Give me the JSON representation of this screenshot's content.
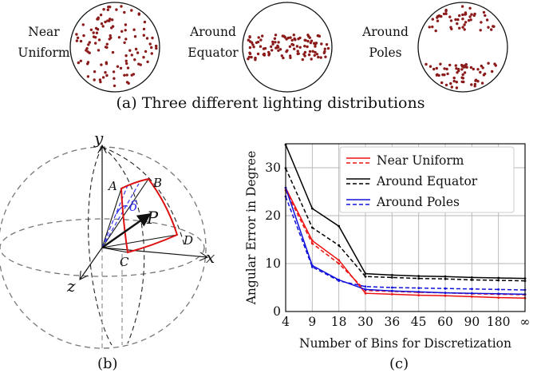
{
  "top_panel": {
    "caption": "(a) Three different lighting distributions",
    "groups": [
      {
        "line1": "Near",
        "line2": "Uniform"
      },
      {
        "line1": "Around",
        "line2": "Equator"
      },
      {
        "line1": "Around",
        "line2": "Poles"
      }
    ]
  },
  "diagram": {
    "caption": "(b)",
    "axis_y": "y",
    "axis_x": "x",
    "axis_z": "z",
    "point_A": "A",
    "point_B": "B",
    "point_C": "C",
    "point_D": "D",
    "vector_P": "P",
    "angle_delta": "δ"
  },
  "colors": {
    "point_dot": "#8b1a1a",
    "near_uniform": "#ee1111",
    "around_equator": "#000000",
    "around_poles": "#1111dd",
    "diagram_red": "#dd1111",
    "diagram_blue": "#3333ee"
  },
  "chart_caption": "(c)",
  "chart_data": {
    "type": "line",
    "xlabel": "Number of Bins for Discretization",
    "ylabel": "Angular Error in Degree",
    "categories": [
      "4",
      "9",
      "18",
      "30",
      "36",
      "45",
      "60",
      "90",
      "180",
      "∞"
    ],
    "ylim": [
      0,
      35
    ],
    "yticks": [
      "0",
      "10",
      "20",
      "30"
    ],
    "grid": true,
    "legend_position": "top-right",
    "legend_style_note": "solid and dashed line per series",
    "series": [
      {
        "name": "Near Uniform",
        "color": "#ee1111",
        "style": "solid",
        "values": [
          25.8,
          14.8,
          10.7,
          3.8,
          3.6,
          3.4,
          3.3,
          3.1,
          2.9,
          2.8
        ]
      },
      {
        "name": "Near Uniform",
        "color": "#ee1111",
        "style": "dashed",
        "values": [
          25.3,
          14.2,
          10.0,
          4.4,
          4.2,
          4.0,
          3.9,
          3.7,
          3.6,
          3.5
        ]
      },
      {
        "name": "Around Equator",
        "color": "#000000",
        "style": "solid",
        "values": [
          34.8,
          21.5,
          17.8,
          7.9,
          7.6,
          7.4,
          7.3,
          7.1,
          7.0,
          6.9
        ]
      },
      {
        "name": "Around Equator",
        "color": "#000000",
        "style": "dashed",
        "values": [
          29.9,
          17.5,
          13.8,
          7.3,
          7.1,
          6.9,
          6.8,
          6.6,
          6.5,
          6.4
        ]
      },
      {
        "name": "Around Poles",
        "color": "#1111dd",
        "style": "solid",
        "values": [
          25.8,
          9.6,
          6.6,
          4.6,
          4.3,
          4.1,
          3.9,
          3.8,
          3.7,
          3.6
        ]
      },
      {
        "name": "Around Poles",
        "color": "#1111dd",
        "style": "dashed",
        "values": [
          24.0,
          9.3,
          6.4,
          5.2,
          5.0,
          4.9,
          4.8,
          4.7,
          4.6,
          4.5
        ]
      }
    ]
  }
}
